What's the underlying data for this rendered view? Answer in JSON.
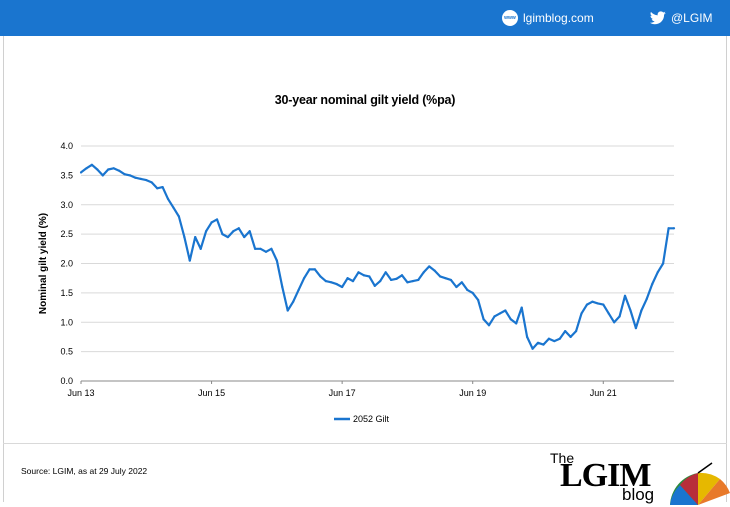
{
  "header": {
    "site_label": "lgimblog.com",
    "twitter_label": "@LGIM",
    "background": "#1a75cf",
    "site_icon": "www-globe-icon",
    "twitter_icon": "twitter-bird-icon"
  },
  "chart_data": {
    "type": "line",
    "title": "30-year nominal gilt yield (%pa)",
    "ylabel": "Nominal gilt yield (%)",
    "xlabel": "",
    "ylim": [
      0,
      4
    ],
    "yticks": [
      "0.0",
      "0.5",
      "1.0",
      "1.5",
      "2.0",
      "2.5",
      "3.0",
      "3.5",
      "4.0"
    ],
    "xlim": [
      "2013-06",
      "2022-07"
    ],
    "xticks": [
      "Jun 13",
      "Jun 15",
      "Jun 17",
      "Jun 19",
      "Jun 21"
    ],
    "grid": "horizontal",
    "legend_position": "bottom",
    "series": [
      {
        "name": "2052 Gilt",
        "color": "#1a75cf",
        "points": [
          [
            "2013-06",
            3.55
          ],
          [
            "2013-07",
            3.62
          ],
          [
            "2013-08",
            3.68
          ],
          [
            "2013-09",
            3.6
          ],
          [
            "2013-10",
            3.5
          ],
          [
            "2013-11",
            3.6
          ],
          [
            "2013-12",
            3.62
          ],
          [
            "2014-01",
            3.58
          ],
          [
            "2014-02",
            3.52
          ],
          [
            "2014-03",
            3.5
          ],
          [
            "2014-04",
            3.46
          ],
          [
            "2014-05",
            3.44
          ],
          [
            "2014-06",
            3.42
          ],
          [
            "2014-07",
            3.38
          ],
          [
            "2014-08",
            3.28
          ],
          [
            "2014-09",
            3.3
          ],
          [
            "2014-10",
            3.1
          ],
          [
            "2014-11",
            2.95
          ],
          [
            "2014-12",
            2.8
          ],
          [
            "2015-01",
            2.45
          ],
          [
            "2015-02",
            2.05
          ],
          [
            "2015-03",
            2.45
          ],
          [
            "2015-04",
            2.25
          ],
          [
            "2015-05",
            2.55
          ],
          [
            "2015-06",
            2.7
          ],
          [
            "2015-07",
            2.75
          ],
          [
            "2015-08",
            2.5
          ],
          [
            "2015-09",
            2.45
          ],
          [
            "2015-10",
            2.55
          ],
          [
            "2015-11",
            2.6
          ],
          [
            "2015-12",
            2.45
          ],
          [
            "2016-01",
            2.55
          ],
          [
            "2016-02",
            2.25
          ],
          [
            "2016-03",
            2.25
          ],
          [
            "2016-04",
            2.2
          ],
          [
            "2016-05",
            2.25
          ],
          [
            "2016-06",
            2.05
          ],
          [
            "2016-07",
            1.6
          ],
          [
            "2016-08",
            1.2
          ],
          [
            "2016-09",
            1.35
          ],
          [
            "2016-10",
            1.55
          ],
          [
            "2016-11",
            1.75
          ],
          [
            "2016-12",
            1.9
          ],
          [
            "2017-01",
            1.9
          ],
          [
            "2017-02",
            1.78
          ],
          [
            "2017-03",
            1.7
          ],
          [
            "2017-04",
            1.68
          ],
          [
            "2017-05",
            1.65
          ],
          [
            "2017-06",
            1.6
          ],
          [
            "2017-07",
            1.75
          ],
          [
            "2017-08",
            1.7
          ],
          [
            "2017-09",
            1.85
          ],
          [
            "2017-10",
            1.8
          ],
          [
            "2017-11",
            1.78
          ],
          [
            "2017-12",
            1.62
          ],
          [
            "2018-01",
            1.7
          ],
          [
            "2018-02",
            1.85
          ],
          [
            "2018-03",
            1.72
          ],
          [
            "2018-04",
            1.74
          ],
          [
            "2018-05",
            1.8
          ],
          [
            "2018-06",
            1.68
          ],
          [
            "2018-07",
            1.7
          ],
          [
            "2018-08",
            1.72
          ],
          [
            "2018-09",
            1.85
          ],
          [
            "2018-10",
            1.95
          ],
          [
            "2018-11",
            1.88
          ],
          [
            "2018-12",
            1.78
          ],
          [
            "2019-01",
            1.75
          ],
          [
            "2019-02",
            1.72
          ],
          [
            "2019-03",
            1.6
          ],
          [
            "2019-04",
            1.68
          ],
          [
            "2019-05",
            1.55
          ],
          [
            "2019-06",
            1.5
          ],
          [
            "2019-07",
            1.38
          ],
          [
            "2019-08",
            1.05
          ],
          [
            "2019-09",
            0.95
          ],
          [
            "2019-10",
            1.1
          ],
          [
            "2019-11",
            1.15
          ],
          [
            "2019-12",
            1.2
          ],
          [
            "2020-01",
            1.05
          ],
          [
            "2020-02",
            0.98
          ],
          [
            "2020-03",
            1.25
          ],
          [
            "2020-04",
            0.75
          ],
          [
            "2020-05",
            0.55
          ],
          [
            "2020-06",
            0.65
          ],
          [
            "2020-07",
            0.62
          ],
          [
            "2020-08",
            0.72
          ],
          [
            "2020-09",
            0.68
          ],
          [
            "2020-10",
            0.72
          ],
          [
            "2020-11",
            0.85
          ],
          [
            "2020-12",
            0.75
          ],
          [
            "2021-01",
            0.85
          ],
          [
            "2021-02",
            1.15
          ],
          [
            "2021-03",
            1.3
          ],
          [
            "2021-04",
            1.35
          ],
          [
            "2021-05",
            1.32
          ],
          [
            "2021-06",
            1.3
          ],
          [
            "2021-07",
            1.15
          ],
          [
            "2021-08",
            1.0
          ],
          [
            "2021-09",
            1.1
          ],
          [
            "2021-10",
            1.45
          ],
          [
            "2021-11",
            1.2
          ],
          [
            "2021-12",
            0.9
          ],
          [
            "2022-01",
            1.2
          ],
          [
            "2022-02",
            1.4
          ],
          [
            "2022-03",
            1.65
          ],
          [
            "2022-04",
            1.85
          ],
          [
            "2022-05",
            2.0
          ],
          [
            "2022-06",
            2.6
          ],
          [
            "2022-07",
            2.6
          ]
        ]
      }
    ]
  },
  "footer": {
    "source": "Source: LGIM,  as at 29 July 2022",
    "logo_the": "The",
    "logo_main": "LGIM",
    "logo_blog": "blog",
    "logo_icon": "umbrella-icon"
  }
}
